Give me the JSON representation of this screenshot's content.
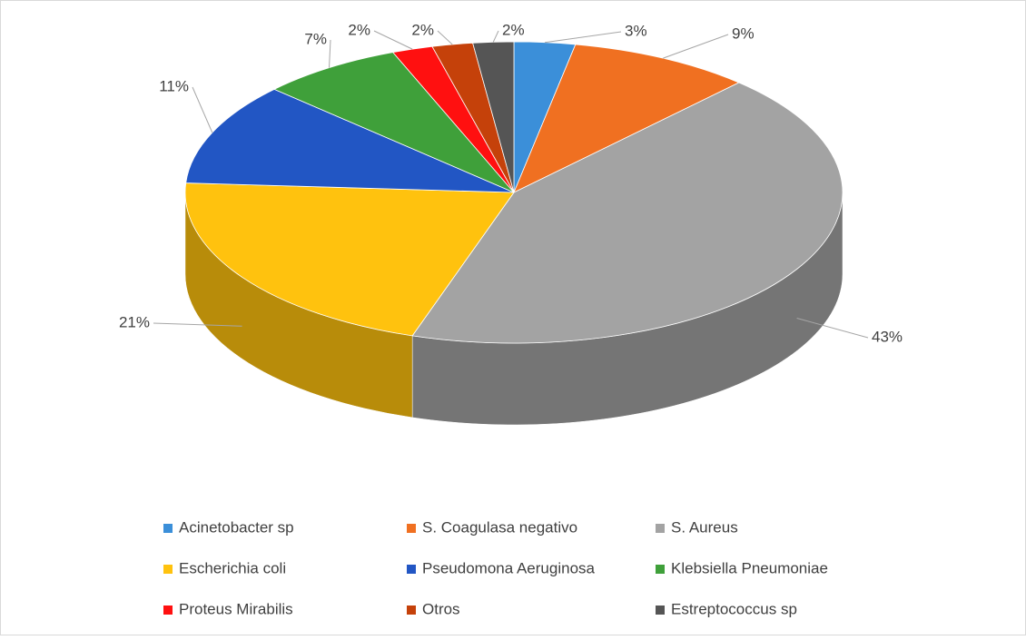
{
  "chart_data": {
    "type": "pie",
    "categories": [
      "Acinetobacter sp",
      "S. Coagulasa negativo",
      "S. Aureus",
      "Escherichia coli",
      "Pseudomona Aeruginosa",
      "Klebsiella Pneumoniae",
      "Proteus  Mirabilis",
      "Otros",
      "Estreptococcus sp"
    ],
    "values": [
      3,
      9,
      43,
      21,
      11,
      7,
      2,
      2,
      2
    ],
    "value_labels": [
      "3%",
      "9%",
      "43%",
      "21%",
      "11%",
      "7%",
      "2%",
      "2%",
      "2%"
    ],
    "colors": [
      "#3b8fd9",
      "#f07021",
      "#a3a3a3",
      "#ffc20e",
      "#2256c4",
      "#3fa03a",
      "#ff1010",
      "#c5410a",
      "#555555"
    ],
    "legend": "bottom"
  }
}
